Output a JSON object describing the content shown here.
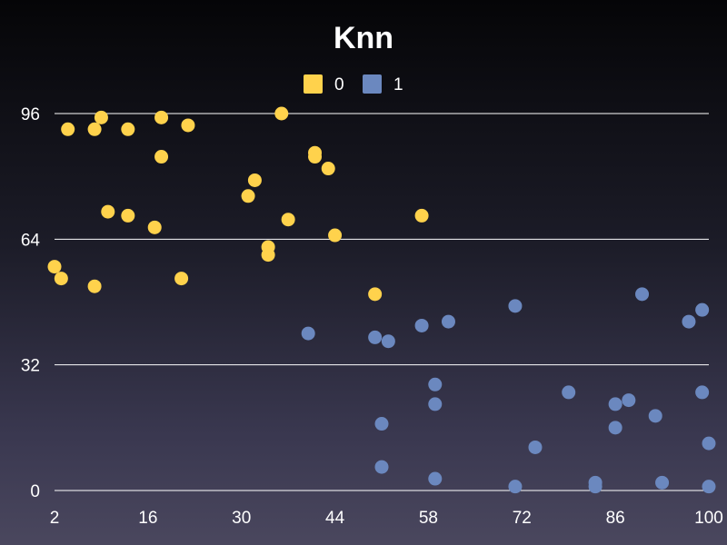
{
  "chart_data": {
    "type": "scatter",
    "title": "Knn",
    "xlabel": "",
    "ylabel": "",
    "xlim": [
      2,
      100
    ],
    "ylim": [
      0,
      96
    ],
    "x_ticks": [
      2,
      16,
      30,
      44,
      58,
      72,
      86,
      100
    ],
    "y_ticks": [
      0,
      32,
      64,
      96
    ],
    "grid": "horizontal",
    "legend_position": "top-center",
    "series": [
      {
        "name": "0",
        "color": "#ffd24c",
        "points": [
          [
            2,
            57
          ],
          [
            3,
            54
          ],
          [
            4,
            92
          ],
          [
            8,
            92
          ],
          [
            9,
            95
          ],
          [
            10,
            71
          ],
          [
            8,
            52
          ],
          [
            13,
            92
          ],
          [
            13,
            70
          ],
          [
            17,
            67
          ],
          [
            18,
            95
          ],
          [
            18,
            85
          ],
          [
            21,
            54
          ],
          [
            22,
            93
          ],
          [
            31,
            75
          ],
          [
            32,
            79
          ],
          [
            34,
            62
          ],
          [
            34,
            60
          ],
          [
            36,
            96
          ],
          [
            37,
            69
          ],
          [
            41,
            86
          ],
          [
            41,
            85
          ],
          [
            43,
            82
          ],
          [
            44,
            65
          ],
          [
            50,
            50
          ],
          [
            57,
            70
          ]
        ]
      },
      {
        "name": "1",
        "color": "#6b88bf",
        "points": [
          [
            40,
            40
          ],
          [
            50,
            39
          ],
          [
            51,
            17
          ],
          [
            51,
            6
          ],
          [
            52,
            38
          ],
          [
            57,
            42
          ],
          [
            59,
            27
          ],
          [
            59,
            22
          ],
          [
            59,
            3
          ],
          [
            61,
            43
          ],
          [
            71,
            47
          ],
          [
            71,
            1
          ],
          [
            74,
            11
          ],
          [
            79,
            25
          ],
          [
            83,
            2
          ],
          [
            83,
            1
          ],
          [
            86,
            22
          ],
          [
            86,
            16
          ],
          [
            88,
            23
          ],
          [
            90,
            50
          ],
          [
            92,
            19
          ],
          [
            93,
            2
          ],
          [
            97,
            43
          ],
          [
            99,
            46
          ],
          [
            99,
            25
          ],
          [
            100,
            12
          ],
          [
            100,
            1
          ]
        ]
      }
    ]
  }
}
